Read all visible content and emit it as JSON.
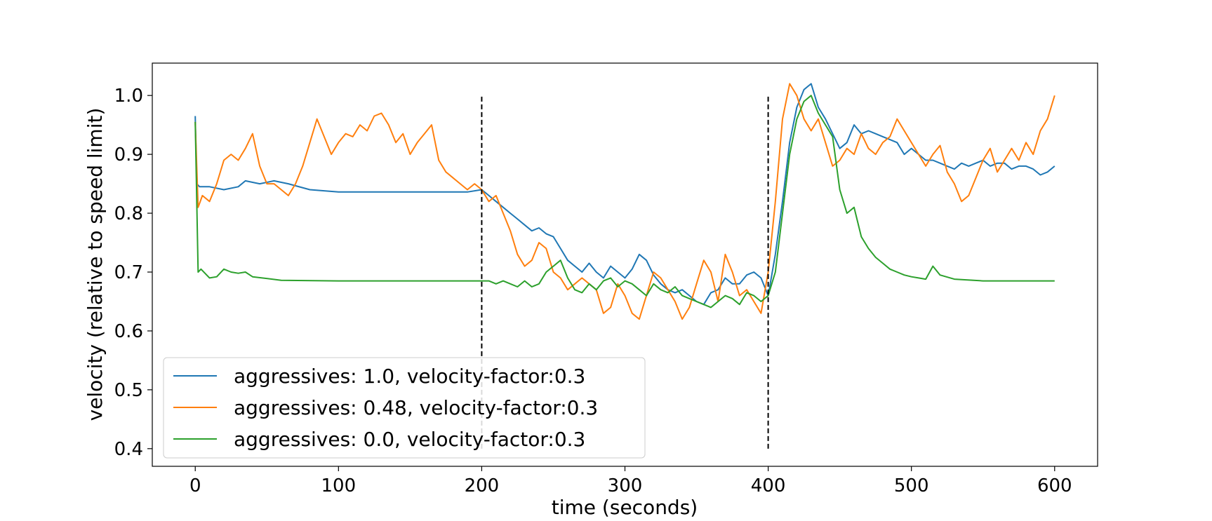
{
  "chart_data": {
    "type": "line",
    "title": "",
    "xlabel": "time (seconds)",
    "ylabel": "velocity (relative to speed limit)",
    "xlim": [
      -30,
      630
    ],
    "ylim": [
      0.37,
      1.055
    ],
    "xticks": [
      0,
      100,
      200,
      300,
      400,
      500,
      600
    ],
    "yticks": [
      0.4,
      0.5,
      0.6,
      0.7,
      0.8,
      0.9,
      1.0
    ],
    "xtick_labels": [
      "0",
      "100",
      "200",
      "300",
      "400",
      "500",
      "600"
    ],
    "ytick_labels": [
      "0.4",
      "0.5",
      "0.6",
      "0.7",
      "0.8",
      "0.9",
      "1.0"
    ],
    "grid": false,
    "legend_position": "lower-left",
    "vlines": [
      {
        "x": 200,
        "y": [
          0.4,
          1.0
        ],
        "style": "dashed",
        "color": "#000000"
      },
      {
        "x": 400,
        "y": [
          0.4,
          1.0
        ],
        "style": "dashed",
        "color": "#000000"
      }
    ],
    "series": [
      {
        "name": "aggressives: 1.0, velocity-factor:0.3",
        "color": "#1f77b4",
        "x": [
          0,
          1,
          3,
          10,
          20,
          30,
          35,
          45,
          55,
          65,
          80,
          100,
          130,
          160,
          190,
          200,
          205,
          210,
          215,
          220,
          225,
          230,
          235,
          240,
          245,
          250,
          255,
          260,
          265,
          270,
          275,
          280,
          285,
          290,
          295,
          300,
          305,
          310,
          315,
          320,
          325,
          330,
          335,
          340,
          345,
          350,
          355,
          360,
          365,
          370,
          375,
          380,
          385,
          390,
          395,
          400,
          405,
          410,
          415,
          420,
          425,
          430,
          435,
          440,
          445,
          450,
          455,
          460,
          465,
          470,
          475,
          480,
          485,
          490,
          495,
          500,
          505,
          510,
          515,
          520,
          525,
          530,
          535,
          540,
          545,
          550,
          555,
          560,
          565,
          570,
          575,
          580,
          585,
          590,
          595,
          600
        ],
        "values": [
          0.965,
          0.85,
          0.845,
          0.845,
          0.84,
          0.845,
          0.855,
          0.85,
          0.855,
          0.85,
          0.84,
          0.836,
          0.836,
          0.836,
          0.836,
          0.84,
          0.83,
          0.82,
          0.81,
          0.8,
          0.79,
          0.78,
          0.77,
          0.775,
          0.765,
          0.76,
          0.74,
          0.72,
          0.71,
          0.7,
          0.715,
          0.7,
          0.69,
          0.71,
          0.7,
          0.69,
          0.705,
          0.73,
          0.72,
          0.695,
          0.68,
          0.67,
          0.665,
          0.67,
          0.66,
          0.65,
          0.645,
          0.665,
          0.67,
          0.69,
          0.68,
          0.68,
          0.695,
          0.7,
          0.69,
          0.66,
          0.73,
          0.82,
          0.92,
          0.98,
          1.01,
          1.02,
          0.98,
          0.96,
          0.935,
          0.91,
          0.92,
          0.95,
          0.935,
          0.94,
          0.935,
          0.93,
          0.925,
          0.92,
          0.9,
          0.91,
          0.9,
          0.89,
          0.89,
          0.885,
          0.88,
          0.875,
          0.885,
          0.88,
          0.885,
          0.89,
          0.88,
          0.885,
          0.885,
          0.875,
          0.88,
          0.88,
          0.875,
          0.865,
          0.87,
          0.88
        ]
      },
      {
        "name": "aggressives: 0.48, velocity-factor:0.3",
        "color": "#ff7f0e",
        "x": [
          0,
          2,
          5,
          10,
          15,
          20,
          25,
          30,
          35,
          40,
          45,
          50,
          55,
          60,
          65,
          70,
          75,
          80,
          85,
          90,
          95,
          100,
          105,
          110,
          115,
          120,
          125,
          130,
          135,
          140,
          145,
          150,
          155,
          160,
          165,
          170,
          175,
          180,
          185,
          190,
          195,
          200,
          205,
          210,
          215,
          220,
          225,
          230,
          235,
          240,
          245,
          250,
          255,
          260,
          265,
          270,
          275,
          280,
          285,
          290,
          295,
          300,
          305,
          310,
          315,
          320,
          325,
          330,
          335,
          340,
          345,
          350,
          355,
          360,
          365,
          370,
          375,
          380,
          385,
          390,
          395,
          400,
          405,
          410,
          415,
          420,
          425,
          430,
          435,
          440,
          445,
          450,
          455,
          460,
          465,
          470,
          475,
          480,
          485,
          490,
          495,
          500,
          505,
          510,
          515,
          520,
          525,
          530,
          535,
          540,
          545,
          550,
          555,
          560,
          565,
          570,
          575,
          580,
          585,
          590,
          595,
          600
        ],
        "values": [
          0.955,
          0.81,
          0.83,
          0.82,
          0.85,
          0.89,
          0.9,
          0.89,
          0.91,
          0.935,
          0.88,
          0.85,
          0.85,
          0.84,
          0.83,
          0.85,
          0.88,
          0.92,
          0.96,
          0.93,
          0.9,
          0.92,
          0.935,
          0.93,
          0.95,
          0.94,
          0.965,
          0.97,
          0.95,
          0.92,
          0.935,
          0.9,
          0.92,
          0.935,
          0.95,
          0.89,
          0.87,
          0.86,
          0.85,
          0.84,
          0.85,
          0.84,
          0.82,
          0.83,
          0.8,
          0.77,
          0.73,
          0.71,
          0.72,
          0.75,
          0.74,
          0.7,
          0.69,
          0.67,
          0.68,
          0.69,
          0.68,
          0.67,
          0.63,
          0.64,
          0.68,
          0.66,
          0.63,
          0.62,
          0.66,
          0.7,
          0.69,
          0.67,
          0.65,
          0.62,
          0.64,
          0.68,
          0.72,
          0.7,
          0.65,
          0.73,
          0.7,
          0.66,
          0.67,
          0.65,
          0.63,
          0.7,
          0.82,
          0.96,
          1.02,
          1.0,
          0.96,
          0.94,
          0.96,
          0.92,
          0.88,
          0.89,
          0.91,
          0.9,
          0.935,
          0.91,
          0.9,
          0.92,
          0.93,
          0.96,
          0.94,
          0.92,
          0.9,
          0.88,
          0.9,
          0.915,
          0.87,
          0.85,
          0.82,
          0.83,
          0.86,
          0.89,
          0.91,
          0.87,
          0.89,
          0.91,
          0.89,
          0.92,
          0.9,
          0.94,
          0.96,
          1.0
        ]
      },
      {
        "name": "aggressives: 0.0, velocity-factor:0.3",
        "color": "#2ca02c",
        "x": [
          0,
          2,
          4,
          10,
          15,
          20,
          25,
          30,
          35,
          40,
          60,
          100,
          150,
          195,
          200,
          205,
          210,
          215,
          220,
          225,
          230,
          235,
          240,
          245,
          250,
          255,
          260,
          265,
          270,
          275,
          280,
          285,
          290,
          295,
          300,
          305,
          310,
          315,
          320,
          325,
          330,
          335,
          340,
          345,
          350,
          355,
          360,
          365,
          370,
          375,
          380,
          385,
          390,
          395,
          400,
          405,
          410,
          415,
          420,
          425,
          430,
          435,
          440,
          445,
          450,
          455,
          460,
          465,
          470,
          475,
          480,
          485,
          490,
          495,
          500,
          505,
          510,
          515,
          520,
          530,
          550,
          575,
          600
        ],
        "values": [
          0.955,
          0.7,
          0.705,
          0.69,
          0.692,
          0.705,
          0.7,
          0.698,
          0.7,
          0.692,
          0.686,
          0.685,
          0.685,
          0.685,
          0.685,
          0.685,
          0.68,
          0.685,
          0.68,
          0.675,
          0.685,
          0.675,
          0.68,
          0.7,
          0.71,
          0.72,
          0.69,
          0.67,
          0.665,
          0.68,
          0.67,
          0.685,
          0.69,
          0.675,
          0.685,
          0.68,
          0.67,
          0.66,
          0.68,
          0.67,
          0.665,
          0.675,
          0.66,
          0.655,
          0.65,
          0.645,
          0.64,
          0.65,
          0.66,
          0.655,
          0.645,
          0.665,
          0.66,
          0.65,
          0.66,
          0.7,
          0.8,
          0.9,
          0.96,
          0.99,
          1.0,
          0.97,
          0.95,
          0.93,
          0.84,
          0.8,
          0.81,
          0.76,
          0.74,
          0.725,
          0.715,
          0.705,
          0.7,
          0.695,
          0.692,
          0.69,
          0.688,
          0.71,
          0.695,
          0.688,
          0.685,
          0.685,
          0.685
        ]
      }
    ]
  }
}
